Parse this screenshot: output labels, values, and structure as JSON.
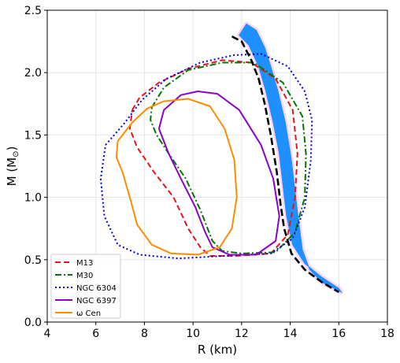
{
  "chart_data": {
    "type": "line",
    "title": "",
    "xlabel": "R (km)",
    "ylabel_main": "M (M",
    "ylabel_sub": "⊙",
    "ylabel_close": ")",
    "xlim": [
      4,
      18
    ],
    "ylim": [
      0,
      2.5
    ],
    "xticks": [
      4,
      6,
      8,
      10,
      12,
      14,
      16,
      18
    ],
    "xtick_labels": [
      "4",
      "6",
      "8",
      "10",
      "12",
      "14",
      "16",
      "18"
    ],
    "yticks": [
      0.0,
      0.5,
      1.0,
      1.5,
      2.0,
      2.5
    ],
    "ytick_labels": [
      "0.0",
      "0.5",
      "1.0",
      "1.5",
      "2.0",
      "2.5"
    ],
    "grid": true,
    "legend_position": "lower-left",
    "band": {
      "color": "#1e90ff",
      "halo_color": "#ff8fd0",
      "left": [
        [
          11.9,
          2.3
        ],
        [
          12.3,
          2.22
        ],
        [
          12.7,
          2.05
        ],
        [
          13.0,
          1.85
        ],
        [
          13.3,
          1.6
        ],
        [
          13.55,
          1.35
        ],
        [
          13.7,
          1.1
        ],
        [
          13.85,
          0.85
        ],
        [
          14.1,
          0.62
        ],
        [
          14.6,
          0.47
        ],
        [
          15.3,
          0.36
        ],
        [
          16.0,
          0.27
        ]
      ],
      "right": [
        [
          16.1,
          0.24
        ],
        [
          15.3,
          0.32
        ],
        [
          14.8,
          0.42
        ],
        [
          14.5,
          0.58
        ],
        [
          14.35,
          0.8
        ],
        [
          14.2,
          1.05
        ],
        [
          14.05,
          1.3
        ],
        [
          13.8,
          1.6
        ],
        [
          13.5,
          1.85
        ],
        [
          13.2,
          2.05
        ],
        [
          12.95,
          2.2
        ],
        [
          12.6,
          2.34
        ],
        [
          12.2,
          2.39
        ]
      ]
    },
    "eos_curve": {
      "color": "#000000",
      "style": "dashed",
      "points": [
        [
          11.6,
          2.29
        ],
        [
          12.0,
          2.25
        ],
        [
          12.4,
          2.1
        ],
        [
          12.7,
          1.95
        ],
        [
          12.95,
          1.75
        ],
        [
          13.2,
          1.5
        ],
        [
          13.45,
          1.2
        ],
        [
          13.6,
          0.95
        ],
        [
          13.75,
          0.75
        ],
        [
          14.05,
          0.55
        ],
        [
          14.6,
          0.42
        ],
        [
          15.3,
          0.32
        ],
        [
          16.0,
          0.24
        ]
      ]
    },
    "series": [
      {
        "name": "M13",
        "color": "#e8131a",
        "style": "dashed",
        "points": [
          [
            7.5,
            1.7
          ],
          [
            7.8,
            1.8
          ],
          [
            8.6,
            1.92
          ],
          [
            9.8,
            2.03
          ],
          [
            11.2,
            2.1
          ],
          [
            12.4,
            2.08
          ],
          [
            13.4,
            1.95
          ],
          [
            14.1,
            1.7
          ],
          [
            14.3,
            1.35
          ],
          [
            14.2,
            1.0
          ],
          [
            13.9,
            0.7
          ],
          [
            13.2,
            0.55
          ],
          [
            11.8,
            0.53
          ],
          [
            10.7,
            0.53
          ],
          [
            10.3,
            0.6
          ],
          [
            9.8,
            0.75
          ],
          [
            9.2,
            1.0
          ],
          [
            8.4,
            1.2
          ],
          [
            7.7,
            1.4
          ],
          [
            7.4,
            1.55
          ],
          [
            7.5,
            1.7
          ]
        ]
      },
      {
        "name": "M30",
        "color": "#007700",
        "style": "dashdot",
        "points": [
          [
            8.3,
            1.72
          ],
          [
            8.8,
            1.88
          ],
          [
            9.8,
            2.02
          ],
          [
            11.2,
            2.08
          ],
          [
            12.5,
            2.08
          ],
          [
            13.7,
            1.92
          ],
          [
            14.5,
            1.65
          ],
          [
            14.65,
            1.35
          ],
          [
            14.6,
            1.0
          ],
          [
            14.2,
            0.72
          ],
          [
            13.4,
            0.56
          ],
          [
            12.0,
            0.55
          ],
          [
            11.2,
            0.57
          ],
          [
            10.8,
            0.65
          ],
          [
            10.3,
            0.9
          ],
          [
            9.7,
            1.15
          ],
          [
            9.0,
            1.35
          ],
          [
            8.5,
            1.5
          ],
          [
            8.25,
            1.62
          ],
          [
            8.3,
            1.72
          ]
        ]
      },
      {
        "name": "NGC 6304",
        "color": "#0000dd",
        "style": "dotted",
        "points": [
          [
            6.4,
            1.42
          ],
          [
            7.2,
            1.6
          ],
          [
            7.9,
            1.78
          ],
          [
            8.9,
            1.95
          ],
          [
            10.3,
            2.08
          ],
          [
            11.7,
            2.14
          ],
          [
            12.8,
            2.15
          ],
          [
            13.9,
            2.05
          ],
          [
            14.6,
            1.85
          ],
          [
            14.9,
            1.62
          ],
          [
            14.85,
            1.3
          ],
          [
            14.6,
            0.92
          ],
          [
            14.1,
            0.67
          ],
          [
            13.2,
            0.55
          ],
          [
            11.3,
            0.53
          ],
          [
            9.4,
            0.51
          ],
          [
            7.8,
            0.54
          ],
          [
            6.9,
            0.62
          ],
          [
            6.35,
            0.85
          ],
          [
            6.2,
            1.15
          ],
          [
            6.4,
            1.42
          ]
        ]
      },
      {
        "name": "NGC 6397",
        "color": "#8b00cc",
        "style": "solid",
        "points": [
          [
            8.6,
            1.55
          ],
          [
            8.8,
            1.7
          ],
          [
            9.5,
            1.82
          ],
          [
            10.2,
            1.85
          ],
          [
            11.0,
            1.83
          ],
          [
            11.9,
            1.7
          ],
          [
            12.8,
            1.42
          ],
          [
            13.3,
            1.15
          ],
          [
            13.55,
            0.85
          ],
          [
            13.4,
            0.65
          ],
          [
            12.6,
            0.54
          ],
          [
            11.5,
            0.54
          ],
          [
            10.8,
            0.6
          ],
          [
            10.5,
            0.72
          ],
          [
            10.1,
            0.92
          ],
          [
            9.5,
            1.15
          ],
          [
            9.0,
            1.35
          ],
          [
            8.6,
            1.55
          ]
        ]
      },
      {
        "name": "ω Cen",
        "color": "#ff8c00",
        "style": "solid",
        "points": [
          [
            6.9,
            1.45
          ],
          [
            7.5,
            1.6
          ],
          [
            8.1,
            1.71
          ],
          [
            8.8,
            1.77
          ],
          [
            9.8,
            1.79
          ],
          [
            10.7,
            1.73
          ],
          [
            11.3,
            1.55
          ],
          [
            11.7,
            1.3
          ],
          [
            11.8,
            1.0
          ],
          [
            11.6,
            0.75
          ],
          [
            11.1,
            0.6
          ],
          [
            10.2,
            0.54
          ],
          [
            9.1,
            0.55
          ],
          [
            8.3,
            0.62
          ],
          [
            7.7,
            0.78
          ],
          [
            7.4,
            1.0
          ],
          [
            7.1,
            1.2
          ],
          [
            6.85,
            1.32
          ],
          [
            6.9,
            1.45
          ]
        ]
      }
    ]
  }
}
